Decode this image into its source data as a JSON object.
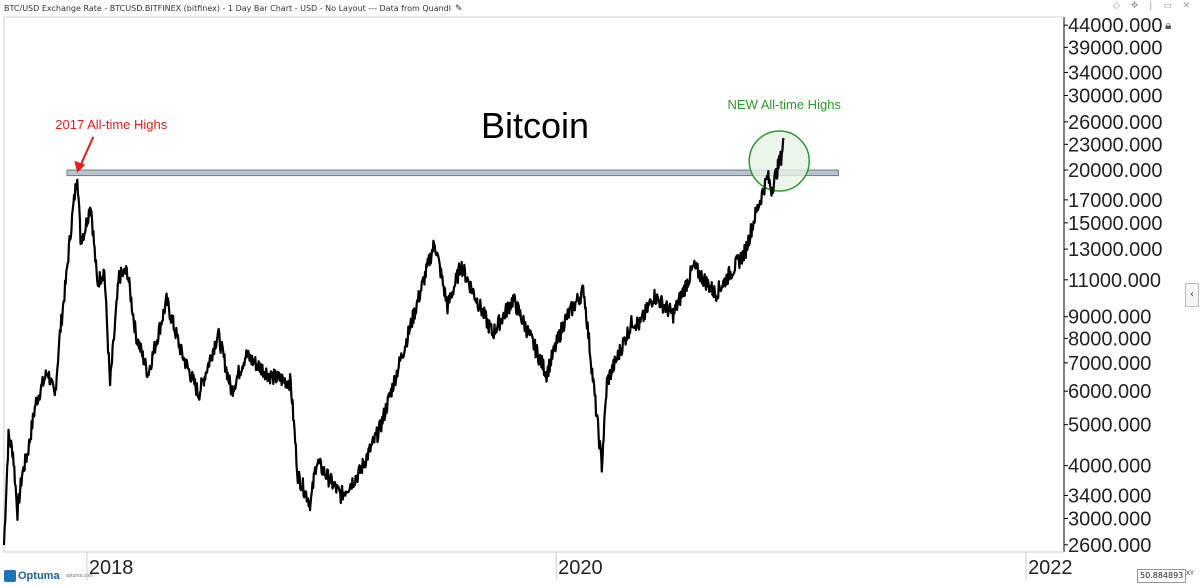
{
  "header": {
    "title": "BTC/USD Exchange Rate - BTCUSD.BITFINEX (bitfinex) - 1 Day Bar Chart - USD - No Layout --- Data from Quandl"
  },
  "footer": {
    "brand": "Optuma",
    "brand_url": "optuma.com",
    "scale_value": "50.884893",
    "scale_mode": "XY"
  },
  "colors": {
    "price": "#000000",
    "annotation_old": "#e0201b",
    "annotation_new": "#2b9a2b",
    "resistance_fill": "#b8c4d0",
    "resistance_stroke": "#6b7b8c",
    "circle_fill": "#e6f2e6"
  },
  "icons": [
    "pencil-icon",
    "lock-icon",
    "collapse-arrow-icon"
  ],
  "chart_data": {
    "type": "line",
    "title": "Bitcoin",
    "scale": "log",
    "ylim": [
      2500,
      46000
    ],
    "y_ticks": [
      "44000.000",
      "39000.000",
      "34000.000",
      "30000.000",
      "26000.000",
      "23000.000",
      "20000.000",
      "17000.000",
      "15000.000",
      "13000.000",
      "11000.000",
      "9000.000",
      "8000.000",
      "7000.000",
      "6000.000",
      "5000.000",
      "4000.000",
      "3400.000",
      "3000.000",
      "2600.000"
    ],
    "x_ticks": [
      "2018",
      "2020",
      "2022"
    ],
    "xlim": [
      "2017-08-25",
      "2022-03-01"
    ],
    "series": [
      {
        "values": [
          [
            "2017-08-25",
            2600
          ],
          [
            "2017-09-01",
            4700
          ],
          [
            "2017-09-08",
            4300
          ],
          [
            "2017-09-15",
            3100
          ],
          [
            "2017-09-22",
            3800
          ],
          [
            "2017-10-01",
            4300
          ],
          [
            "2017-10-13",
            5600
          ],
          [
            "2017-10-20",
            6000
          ],
          [
            "2017-11-01",
            6700
          ],
          [
            "2017-11-12",
            5800
          ],
          [
            "2017-11-20",
            8200
          ],
          [
            "2017-11-29",
            10800
          ],
          [
            "2017-12-07",
            14500
          ],
          [
            "2017-12-17",
            19700
          ],
          [
            "2017-12-22",
            13800
          ],
          [
            "2017-12-28",
            14300
          ],
          [
            "2018-01-07",
            16700
          ],
          [
            "2018-01-17",
            10800
          ],
          [
            "2018-01-28",
            11600
          ],
          [
            "2018-02-06",
            6200
          ],
          [
            "2018-02-20",
            11200
          ],
          [
            "2018-03-05",
            11500
          ],
          [
            "2018-03-18",
            8200
          ],
          [
            "2018-04-06",
            6600
          ],
          [
            "2018-05-05",
            9800
          ],
          [
            "2018-05-28",
            7400
          ],
          [
            "2018-06-24",
            5900
          ],
          [
            "2018-07-24",
            8200
          ],
          [
            "2018-08-14",
            6000
          ],
          [
            "2018-09-05",
            7300
          ],
          [
            "2018-10-15",
            6500
          ],
          [
            "2018-11-14",
            6300
          ],
          [
            "2018-11-25",
            3800
          ],
          [
            "2018-12-15",
            3250
          ],
          [
            "2018-12-24",
            4100
          ],
          [
            "2019-01-31",
            3400
          ],
          [
            "2019-03-01",
            3850
          ],
          [
            "2019-04-02",
            4900
          ],
          [
            "2019-05-14",
            8000
          ],
          [
            "2019-06-26",
            13500
          ],
          [
            "2019-07-16",
            9500
          ],
          [
            "2019-08-06",
            11900
          ],
          [
            "2019-09-24",
            8200
          ],
          [
            "2019-10-26",
            9900
          ],
          [
            "2019-12-17",
            6600
          ],
          [
            "2020-01-14",
            8800
          ],
          [
            "2020-02-13",
            10400
          ],
          [
            "2020-03-12",
            4000
          ],
          [
            "2020-03-20",
            6300
          ],
          [
            "2020-04-29",
            8800
          ],
          [
            "2020-05-10",
            8600
          ],
          [
            "2020-06-01",
            10100
          ],
          [
            "2020-07-01",
            9100
          ],
          [
            "2020-08-02",
            11800
          ],
          [
            "2020-09-05",
            10200
          ],
          [
            "2020-10-21",
            12800
          ],
          [
            "2020-11-05",
            15500
          ],
          [
            "2020-11-25",
            19300
          ],
          [
            "2020-12-01",
            18000
          ],
          [
            "2020-12-16",
            21500
          ],
          [
            "2020-12-20",
            23800
          ]
        ]
      }
    ],
    "annotations": [
      {
        "text": "2017 All-time Highs",
        "x": "2017-12-17",
        "y": 19700
      },
      {
        "text": "NEW All-time Highs",
        "x": "2020-12-13",
        "y": 21000
      }
    ],
    "resistance": {
      "from": "2017-12-01",
      "to": "2021-03-15",
      "low": 19400,
      "high": 20000
    },
    "grid": false,
    "legend": "none"
  }
}
